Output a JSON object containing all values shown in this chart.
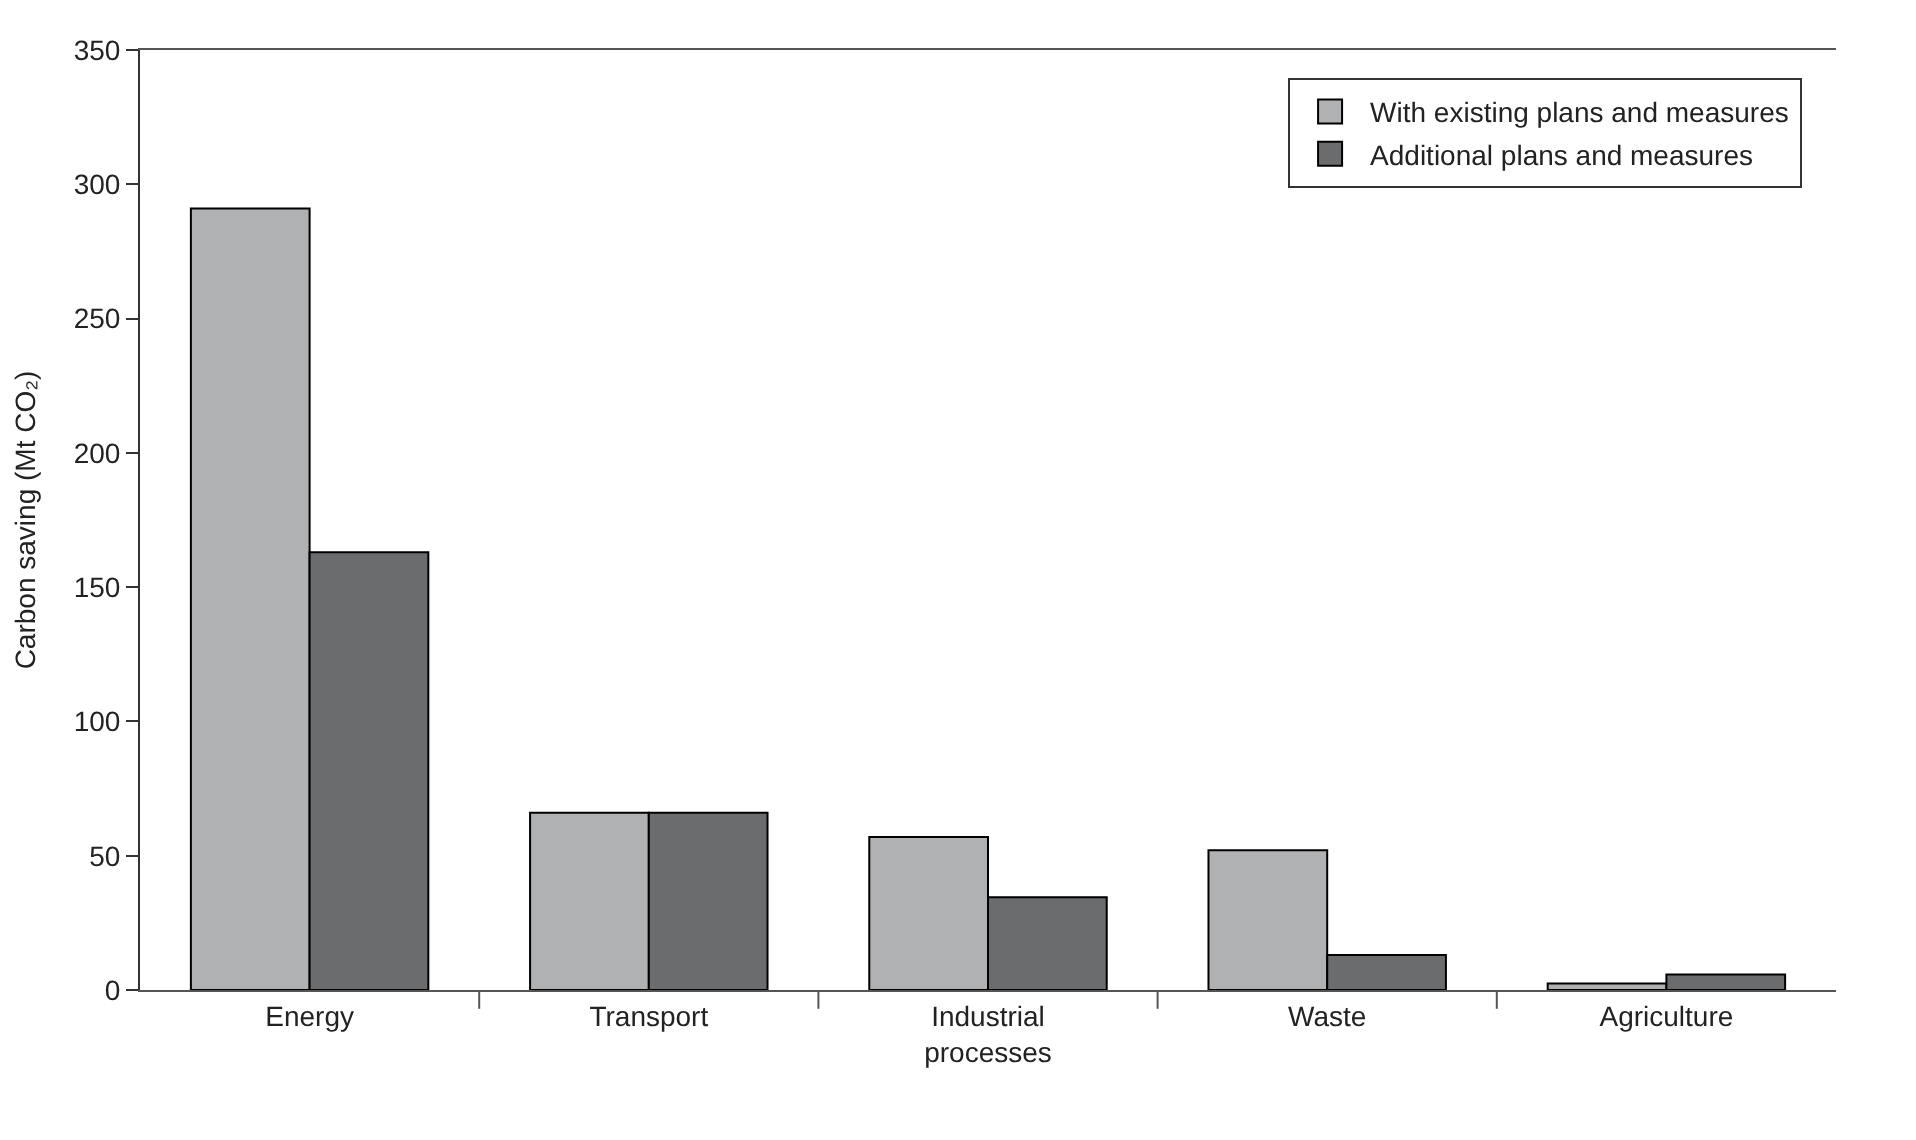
{
  "chart_data": {
    "type": "bar",
    "ylabel": "Carbon saving (Mt CO₂)",
    "categories": [
      "Energy",
      "Transport",
      "Industrial processes",
      "Waste",
      "Agriculture"
    ],
    "series": [
      {
        "name": "With existing plans and measures",
        "color": "#b0b1b3",
        "values": [
          291,
          66,
          57,
          52,
          2.4
        ]
      },
      {
        "name": "Additional plans and measures",
        "color": "#6b6c6e",
        "values": [
          163,
          66,
          34.5,
          13,
          5.8
        ]
      }
    ],
    "ylim": [
      0,
      350
    ],
    "yticks": [
      0,
      50,
      100,
      150,
      200,
      250,
      300,
      350
    ],
    "grid": false,
    "legend": "top right"
  }
}
